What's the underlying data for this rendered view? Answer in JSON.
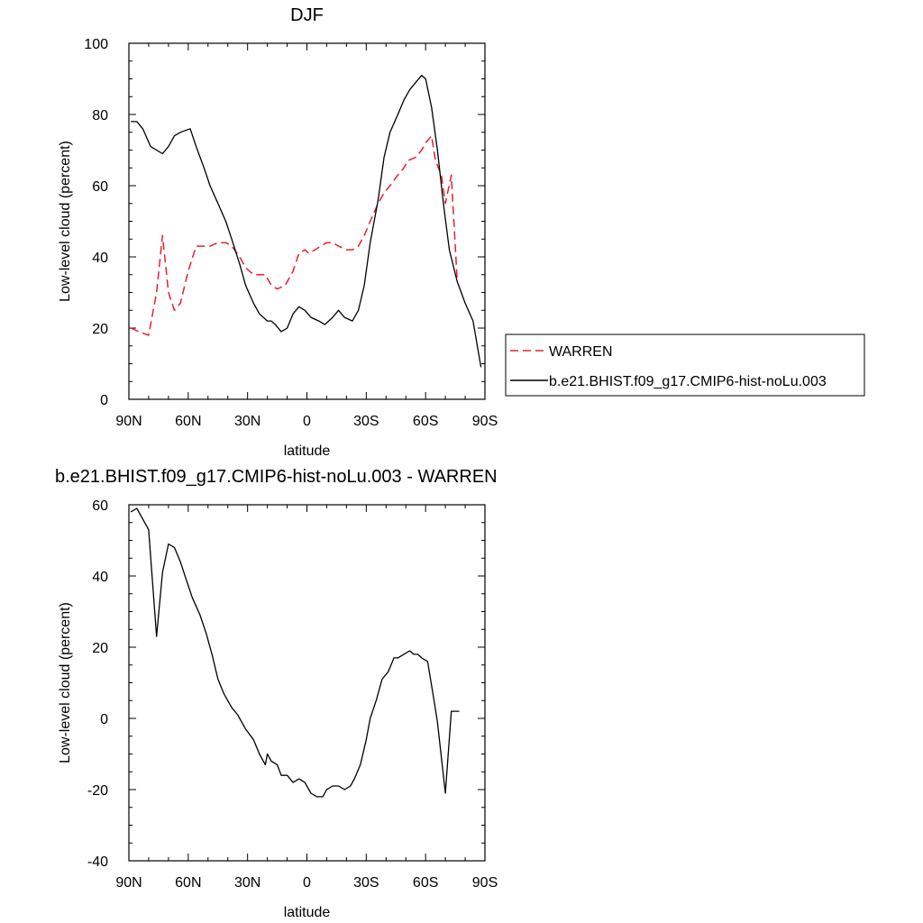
{
  "chart_data": [
    {
      "type": "line",
      "title": "DJF",
      "xlabel": "latitude",
      "ylabel": "Low-level cloud (percent)",
      "xlim": [
        90,
        -90
      ],
      "ylim": [
        0,
        100
      ],
      "x_ticks": [
        {
          "value": 90,
          "label": "90N"
        },
        {
          "value": 60,
          "label": "60N"
        },
        {
          "value": 30,
          "label": "30N"
        },
        {
          "value": 0,
          "label": "0"
        },
        {
          "value": -30,
          "label": "30S"
        },
        {
          "value": -60,
          "label": "60S"
        },
        {
          "value": -90,
          "label": "90S"
        }
      ],
      "y_ticks": [
        {
          "value": 0,
          "label": "0"
        },
        {
          "value": 20,
          "label": "20"
        },
        {
          "value": 40,
          "label": "40"
        },
        {
          "value": 60,
          "label": "60"
        },
        {
          "value": 80,
          "label": "80"
        },
        {
          "value": 100,
          "label": "100"
        }
      ],
      "legend": {
        "position": "right",
        "entries": [
          "WARREN",
          "b.e21.BHIST.f09_g17.CMIP6-hist-noLu.003"
        ]
      },
      "series": [
        {
          "name": "WARREN",
          "color": "#e8202a",
          "dash": "dashed",
          "x": [
            89,
            85,
            80,
            76,
            73,
            70,
            67,
            64,
            60,
            56,
            53,
            49,
            45,
            41,
            38,
            34,
            31,
            27,
            24,
            21,
            18,
            15,
            11,
            7,
            4,
            1,
            -1,
            -4,
            -7,
            -10,
            -13,
            -16,
            -20,
            -23,
            -26,
            -29,
            -32,
            -36,
            -39,
            -42,
            -46,
            -49,
            -51,
            -55,
            -58,
            -60,
            -63,
            -65,
            -68,
            -70,
            -73,
            -76
          ],
          "y": [
            20,
            19,
            18,
            30,
            46,
            30,
            25,
            27,
            36,
            43,
            43,
            43,
            44,
            44,
            43,
            40,
            37,
            35,
            35,
            35,
            32,
            31,
            32,
            36,
            41,
            42,
            41,
            42,
            43,
            44,
            44,
            43,
            42,
            42,
            43,
            46,
            50,
            55,
            58,
            60,
            63,
            65,
            67,
            68,
            70,
            72,
            74,
            67,
            63,
            55,
            63,
            33
          ]
        },
        {
          "name": "b.e21.BHIST.f09_g17.CMIP6-hist-noLu.003",
          "color": "#000000",
          "dash": "solid",
          "x": [
            89,
            86,
            83,
            79,
            73,
            70,
            67,
            64,
            59,
            56,
            52,
            49,
            45,
            41,
            38,
            34,
            31,
            27,
            24,
            20,
            18,
            16,
            13,
            10,
            7,
            4,
            1,
            -2,
            -6,
            -9,
            -13,
            -16,
            -19,
            -23,
            -26,
            -29,
            -32,
            -36,
            -39,
            -42,
            -46,
            -49,
            -52,
            -55,
            -58,
            -60,
            -63,
            -66,
            -69,
            -72,
            -76,
            -80,
            -84,
            -88
          ],
          "y": [
            78,
            78,
            76,
            71,
            69,
            71,
            74,
            75,
            76,
            71,
            65,
            60,
            55,
            50,
            45,
            38,
            32,
            27,
            24,
            22,
            22,
            21,
            19,
            20,
            24,
            26,
            25,
            23,
            22,
            21,
            23,
            25,
            23,
            22,
            25,
            32,
            44,
            56,
            68,
            75,
            80,
            84,
            87,
            89,
            91,
            90,
            82,
            70,
            55,
            42,
            33,
            27,
            22,
            9
          ]
        }
      ]
    },
    {
      "type": "line",
      "title": "b.e21.BHIST.f09_g17.CMIP6-hist-noLu.003 - WARREN",
      "xlabel": "latitude",
      "ylabel": "Low-level cloud (percent)",
      "xlim": [
        90,
        -90
      ],
      "ylim": [
        -40,
        60
      ],
      "x_ticks": [
        {
          "value": 90,
          "label": "90N"
        },
        {
          "value": 60,
          "label": "60N"
        },
        {
          "value": 30,
          "label": "30N"
        },
        {
          "value": 0,
          "label": "0"
        },
        {
          "value": -30,
          "label": "30S"
        },
        {
          "value": -60,
          "label": "60S"
        },
        {
          "value": -90,
          "label": "90S"
        }
      ],
      "y_ticks": [
        {
          "value": -40,
          "label": "-40"
        },
        {
          "value": -20,
          "label": "-20"
        },
        {
          "value": 0,
          "label": "0"
        },
        {
          "value": 20,
          "label": "20"
        },
        {
          "value": 40,
          "label": "40"
        },
        {
          "value": 60,
          "label": "60"
        }
      ],
      "series": [
        {
          "color": "#000000",
          "dash": "solid",
          "x": [
            89,
            86,
            80,
            76,
            73,
            70,
            67,
            64,
            61,
            58,
            54,
            51,
            48,
            45,
            42,
            38,
            35,
            31,
            27,
            24,
            21,
            20,
            18,
            15,
            13,
            10,
            7,
            4,
            1,
            -2,
            -5,
            -8,
            -10,
            -13,
            -16,
            -19,
            -22,
            -24,
            -27,
            -30,
            -32,
            -35,
            -38,
            -41,
            -44,
            -46,
            -49,
            -52,
            -54,
            -56,
            -58,
            -61,
            -64,
            -66,
            -70,
            -73,
            -77
          ],
          "y": [
            58,
            59,
            53,
            23,
            41,
            49,
            48,
            44,
            39,
            34,
            29,
            24,
            18,
            11,
            7,
            3,
            1,
            -3,
            -6,
            -10,
            -13,
            -10,
            -12,
            -13,
            -16,
            -16,
            -18,
            -17,
            -18,
            -21,
            -22,
            -22,
            -20,
            -19,
            -19,
            -20,
            -19,
            -17,
            -13,
            -6,
            0,
            5,
            11,
            13,
            17,
            17,
            18,
            19,
            18,
            18,
            17,
            16,
            6,
            -1,
            -21,
            2,
            2
          ]
        }
      ]
    }
  ]
}
